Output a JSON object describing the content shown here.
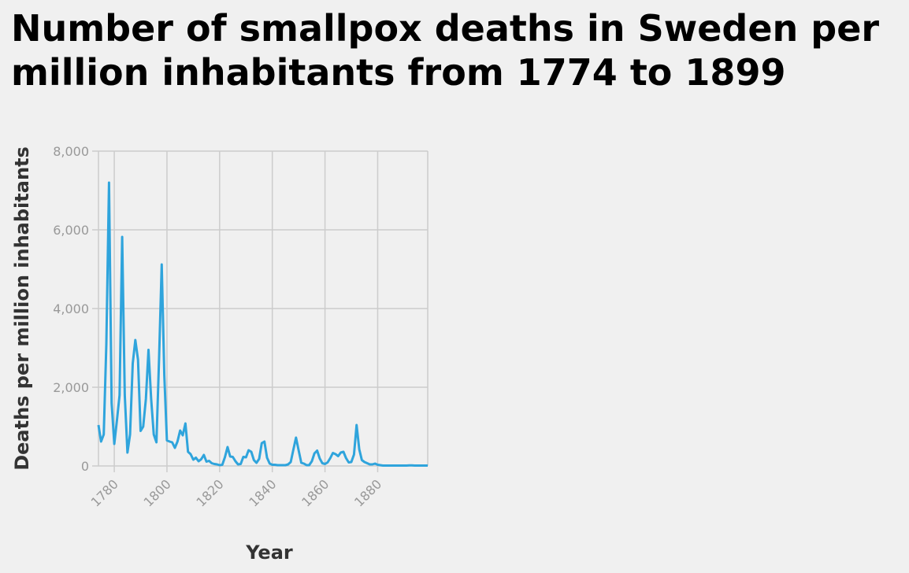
{
  "chart_data": {
    "type": "line",
    "title": "Number of smallpox deaths in Sweden per million inhabitants from 1774 to 1899",
    "xlabel": "Year",
    "ylabel": "Deaths per million inhabitants",
    "xlim": [
      1774,
      1899
    ],
    "ylim": [
      0,
      8000
    ],
    "x_ticks": [
      1780,
      1800,
      1820,
      1840,
      1860,
      1880
    ],
    "x_tick_labels": [
      "1780",
      "1800",
      "1820",
      "1840",
      "1860",
      "1880"
    ],
    "y_ticks": [
      0,
      2000,
      4000,
      6000,
      8000
    ],
    "y_tick_labels": [
      "0",
      "2,000",
      "4,000",
      "6,000",
      "8,000"
    ],
    "grid": true,
    "color": "#2fa4dc",
    "series": [
      {
        "x": [
          1774,
          1775,
          1776,
          1777,
          1778,
          1779,
          1780,
          1781,
          1782,
          1783,
          1784,
          1785,
          1786,
          1787,
          1788,
          1789,
          1790,
          1791,
          1792,
          1793,
          1794,
          1795,
          1796,
          1797,
          1798,
          1799,
          1800,
          1801,
          1802,
          1803,
          1804,
          1805,
          1806,
          1807,
          1808,
          1809,
          1810,
          1811,
          1812,
          1813,
          1814,
          1815,
          1816,
          1817,
          1818,
          1819,
          1820,
          1821,
          1822,
          1823,
          1824,
          1825,
          1826,
          1827,
          1828,
          1829,
          1830,
          1831,
          1832,
          1833,
          1834,
          1835,
          1836,
          1837,
          1838,
          1839,
          1840,
          1841,
          1842,
          1843,
          1844,
          1845,
          1846,
          1847,
          1848,
          1849,
          1850,
          1851,
          1852,
          1853,
          1854,
          1855,
          1856,
          1857,
          1858,
          1859,
          1860,
          1861,
          1862,
          1863,
          1864,
          1865,
          1866,
          1867,
          1868,
          1869,
          1870,
          1871,
          1872,
          1873,
          1874,
          1875,
          1876,
          1877,
          1878,
          1879,
          1880,
          1881,
          1882,
          1883,
          1884,
          1885,
          1886,
          1887,
          1888,
          1889,
          1890,
          1891,
          1892,
          1893,
          1894,
          1895,
          1896,
          1897,
          1898,
          1899
        ],
        "values": [
          1040,
          620,
          800,
          3100,
          7200,
          1600,
          560,
          1150,
          1800,
          5820,
          1800,
          340,
          800,
          2600,
          3200,
          2700,
          890,
          1000,
          1700,
          2950,
          1700,
          800,
          600,
          2700,
          5120,
          2300,
          650,
          620,
          600,
          460,
          620,
          900,
          780,
          1080,
          360,
          300,
          160,
          210,
          120,
          170,
          280,
          110,
          130,
          70,
          50,
          40,
          20,
          30,
          220,
          480,
          240,
          230,
          120,
          40,
          50,
          230,
          220,
          400,
          360,
          150,
          80,
          180,
          580,
          620,
          210,
          60,
          30,
          30,
          20,
          20,
          20,
          20,
          40,
          100,
          420,
          720,
          400,
          80,
          60,
          20,
          20,
          120,
          320,
          390,
          190,
          70,
          50,
          90,
          200,
          330,
          300,
          250,
          340,
          360,
          200,
          90,
          100,
          290,
          1040,
          420,
          150,
          100,
          70,
          40,
          40,
          60,
          30,
          20,
          10,
          10,
          10,
          10,
          10,
          10,
          10,
          10,
          10,
          10,
          15,
          15,
          10,
          10,
          10,
          10,
          10,
          10
        ]
      }
    ]
  }
}
